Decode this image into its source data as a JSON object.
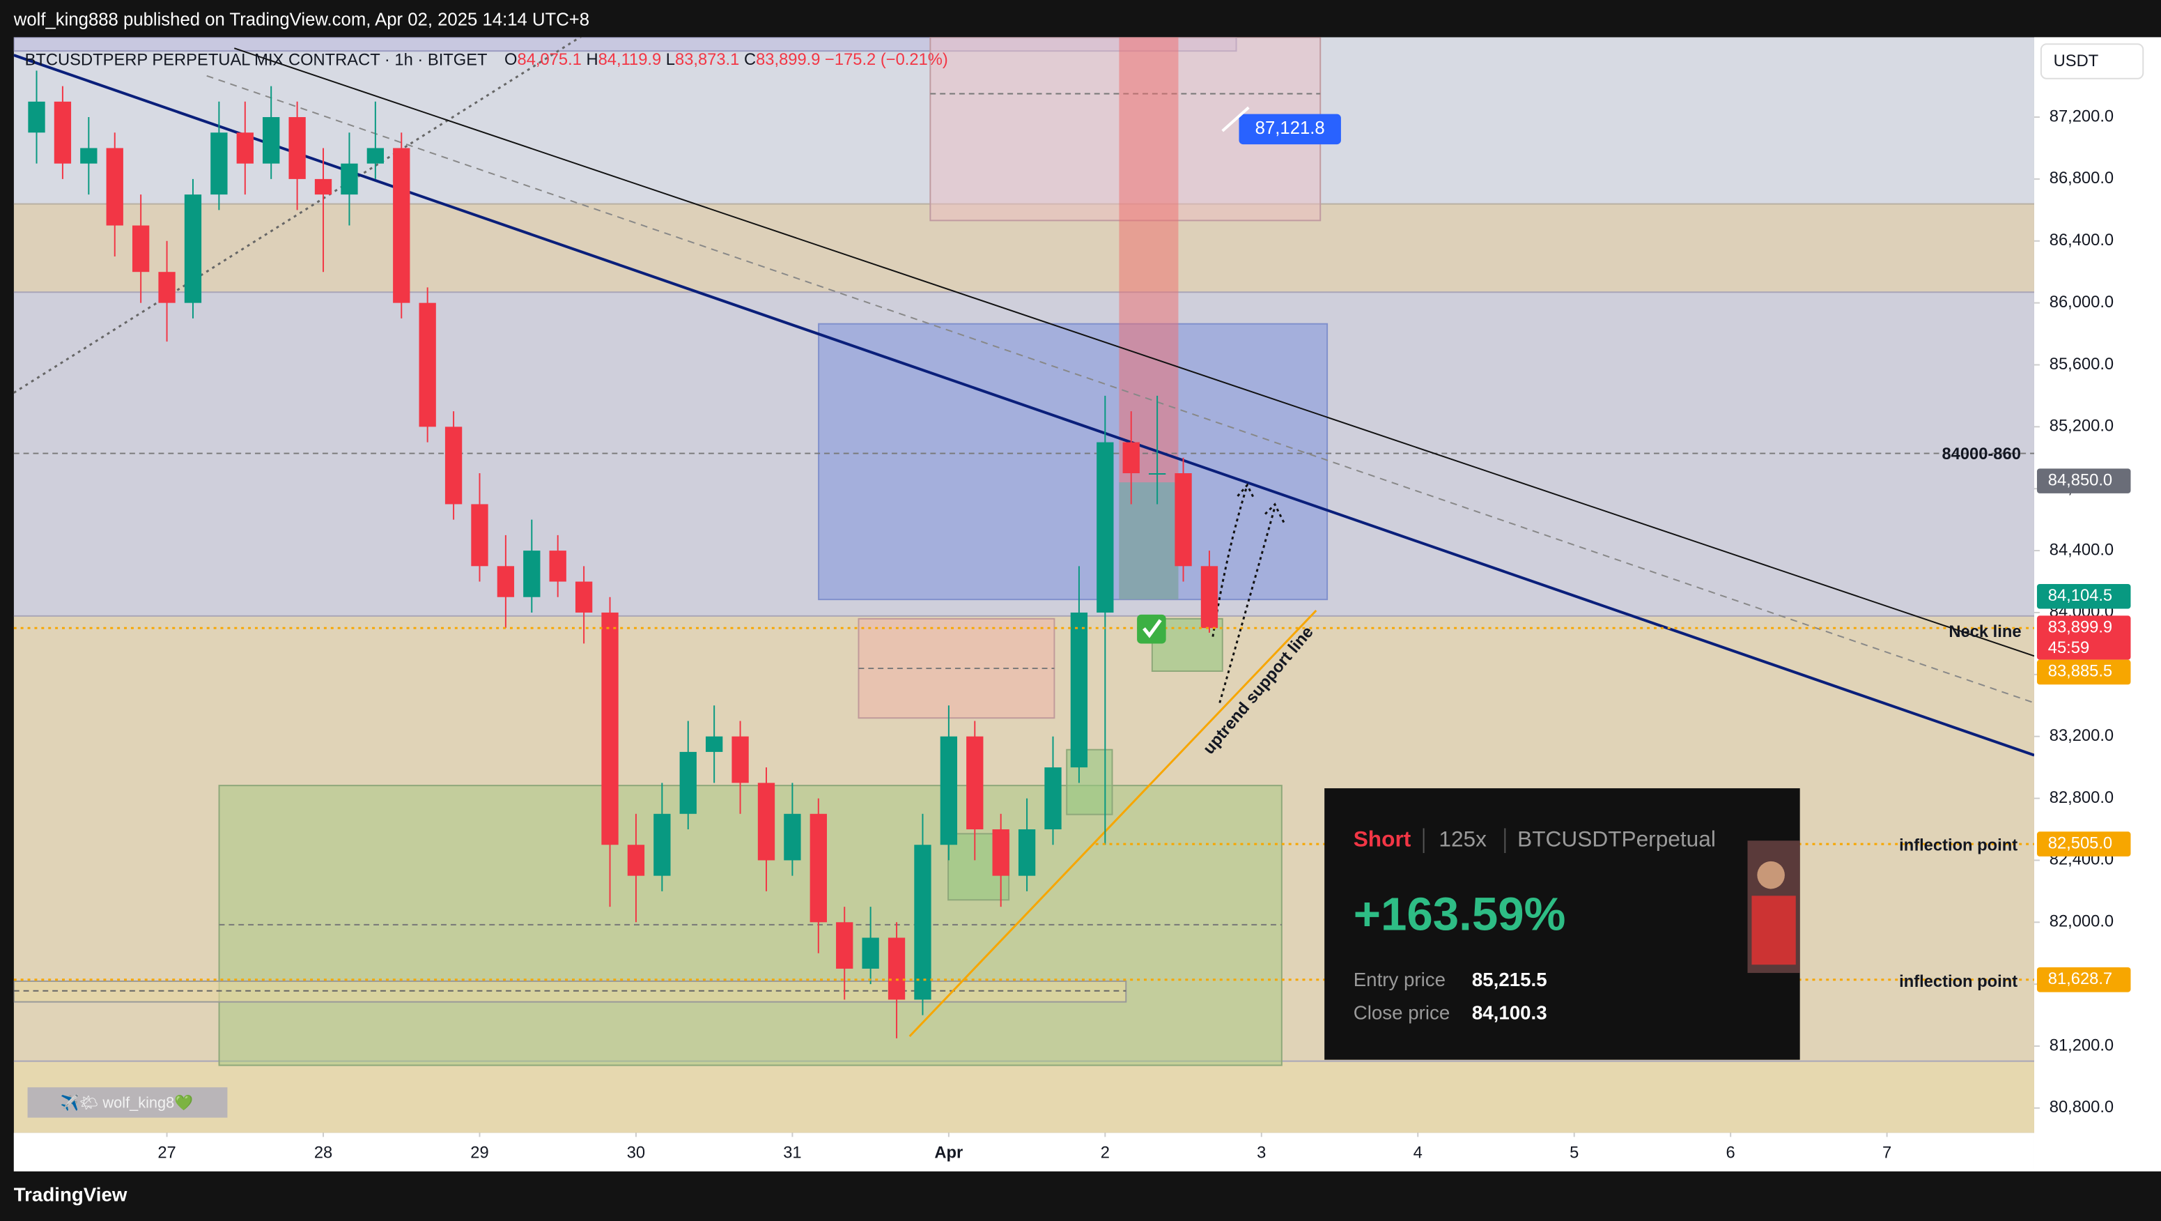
{
  "header": {
    "publisher": "wolf_king888 published on TradingView.com, Apr 02, 2025 14:14 UTC+8"
  },
  "legend": {
    "symbol": "BTCUSDTPERP PERPETUAL MIX CONTRACT · 1h · BITGET",
    "ohlc": [
      {
        "key": "O",
        "value": "84,075.1"
      },
      {
        "key": "H",
        "value": "84,119.9"
      },
      {
        "key": "L",
        "value": "83,873.1"
      },
      {
        "key": "C",
        "value": "83,899.9"
      }
    ],
    "change": "−175.2 (−0.21%)"
  },
  "currency_button": "USDT",
  "chart_data": {
    "type": "candlestick",
    "up_color": "#089981",
    "down_color": "#f23645",
    "x": [
      -20,
      -16,
      -12,
      -8,
      -4,
      0,
      4,
      8,
      12,
      16,
      20,
      24,
      28,
      32,
      36,
      40,
      44,
      48,
      52,
      56,
      60,
      64,
      68,
      72,
      76,
      80,
      84,
      88,
      92,
      96,
      100,
      104,
      108,
      112,
      116,
      120,
      124,
      128,
      132,
      136,
      140,
      144,
      148,
      152,
      156,
      160
    ],
    "open": [
      87100,
      87300,
      86900,
      87000,
      86500,
      86200,
      86000,
      86700,
      87100,
      86900,
      87200,
      86800,
      86700,
      86900,
      87000,
      86000,
      85200,
      84700,
      84300,
      84100,
      84400,
      84200,
      84000,
      82500,
      82300,
      82700,
      83100,
      83200,
      82900,
      82400,
      82700,
      82000,
      81700,
      81900,
      81500,
      82500,
      83200,
      82600,
      82300,
      82600,
      83000,
      84000,
      85100,
      84900,
      84900,
      84300
    ],
    "high": [
      87500,
      87400,
      87200,
      87100,
      86700,
      86400,
      86800,
      87300,
      87300,
      87400,
      87300,
      87000,
      87100,
      87300,
      87100,
      86100,
      85300,
      84900,
      84500,
      84600,
      84500,
      84300,
      84100,
      82700,
      82900,
      83300,
      83400,
      83300,
      83000,
      82900,
      82800,
      82100,
      82100,
      82000,
      82700,
      83400,
      83300,
      82700,
      82800,
      83200,
      84300,
      85400,
      85300,
      85400,
      85000,
      84400
    ],
    "low": [
      86900,
      86800,
      86700,
      86300,
      86000,
      85750,
      85900,
      86600,
      86700,
      86800,
      86600,
      86200,
      86500,
      86800,
      85900,
      85100,
      84600,
      84200,
      83900,
      84000,
      84100,
      83800,
      82100,
      82000,
      82200,
      82600,
      82900,
      82700,
      82200,
      82300,
      81800,
      81500,
      81600,
      81250,
      81400,
      82400,
      82400,
      82100,
      82200,
      82500,
      82900,
      82500,
      84700,
      84700,
      84200,
      83870
    ],
    "close": [
      87300,
      86900,
      87000,
      86500,
      86200,
      86000,
      86700,
      87100,
      86900,
      87200,
      86800,
      86700,
      86900,
      87000,
      86000,
      85200,
      84700,
      84300,
      84100,
      84400,
      84200,
      84000,
      82500,
      82300,
      82700,
      83100,
      83200,
      82900,
      82400,
      82700,
      82000,
      81700,
      81900,
      81500,
      82500,
      83200,
      82600,
      82300,
      82600,
      83000,
      84000,
      85100,
      84900,
      84900,
      84300,
      83900
    ],
    "xlim": [
      -23.5,
      286.6
    ],
    "xticks": [
      {
        "value": 0,
        "label": "27"
      },
      {
        "value": 24,
        "label": "28"
      },
      {
        "value": 48,
        "label": "29"
      },
      {
        "value": 72,
        "label": "30"
      },
      {
        "value": 96,
        "label": "31"
      },
      {
        "value": 120,
        "label": "Apr"
      },
      {
        "value": 144,
        "label": "2"
      },
      {
        "value": 168,
        "label": "3"
      },
      {
        "value": 192,
        "label": "4"
      },
      {
        "value": 216,
        "label": "5"
      },
      {
        "value": 240,
        "label": "6"
      },
      {
        "value": 264,
        "label": "7"
      }
    ],
    "ylim": [
      80640,
      87716
    ],
    "yticks": [
      {
        "value": 80800,
        "label": "80,800.0"
      },
      {
        "value": 81200,
        "label": "81,200.0"
      },
      {
        "value": 81600,
        "label": "81,600.0"
      },
      {
        "value": 82000,
        "label": "82,000.0"
      },
      {
        "value": 82400,
        "label": "82,400.0"
      },
      {
        "value": 82800,
        "label": "82,800.0"
      },
      {
        "value": 83200,
        "label": "83,200.0"
      },
      {
        "value": 83600,
        "label": "83,600.0"
      },
      {
        "value": 84000,
        "label": "84,000.0"
      },
      {
        "value": 84400,
        "label": "84,400.0"
      },
      {
        "value": 84800,
        "label": "84,800.0"
      },
      {
        "value": 85200,
        "label": "85,200.0"
      },
      {
        "value": 85600,
        "label": "85,600.0"
      },
      {
        "value": 86000,
        "label": "86,000.0"
      },
      {
        "value": 86400,
        "label": "86,400.0"
      },
      {
        "value": 86800,
        "label": "86,800.0"
      },
      {
        "value": 87200,
        "label": "87,200.0"
      }
    ]
  },
  "price_labels": [
    {
      "value": 84850,
      "label": "84,850.0",
      "color": "#6a6d78"
    },
    {
      "value": 84104.5,
      "label": "84,104.5",
      "color": "#089981"
    },
    {
      "value": 83899.9,
      "label": "83,899.9",
      "color": "#f23645"
    },
    {
      "value": 83885.5,
      "label": "83,885.5",
      "color": "#f7a600"
    },
    {
      "value": 82505,
      "label": "82,505.0",
      "color": "#f7a600"
    },
    {
      "value": 81628.7,
      "label": "81,628.7",
      "color": "#f7a600"
    }
  ],
  "countdown": "45:59",
  "target_label": {
    "value": 87121.8,
    "label": "87,121.8"
  },
  "annotations": {
    "range": "84000-860",
    "neck_line": "Neck line",
    "uptrend": "uptrend support line",
    "inflection": [
      "inflection point",
      "inflection point"
    ]
  },
  "pnl_card": {
    "side": "Short",
    "leverage": "125x",
    "symbol": "BTCUSDTPerpetual",
    "roi": "+163.59%",
    "entry_label": "Entry price",
    "entry": "85,215.5",
    "close_label": "Close price",
    "close": "84,100.3"
  },
  "watermark": "✈️🌤 wolf_king8💚",
  "footer": "TradingView"
}
